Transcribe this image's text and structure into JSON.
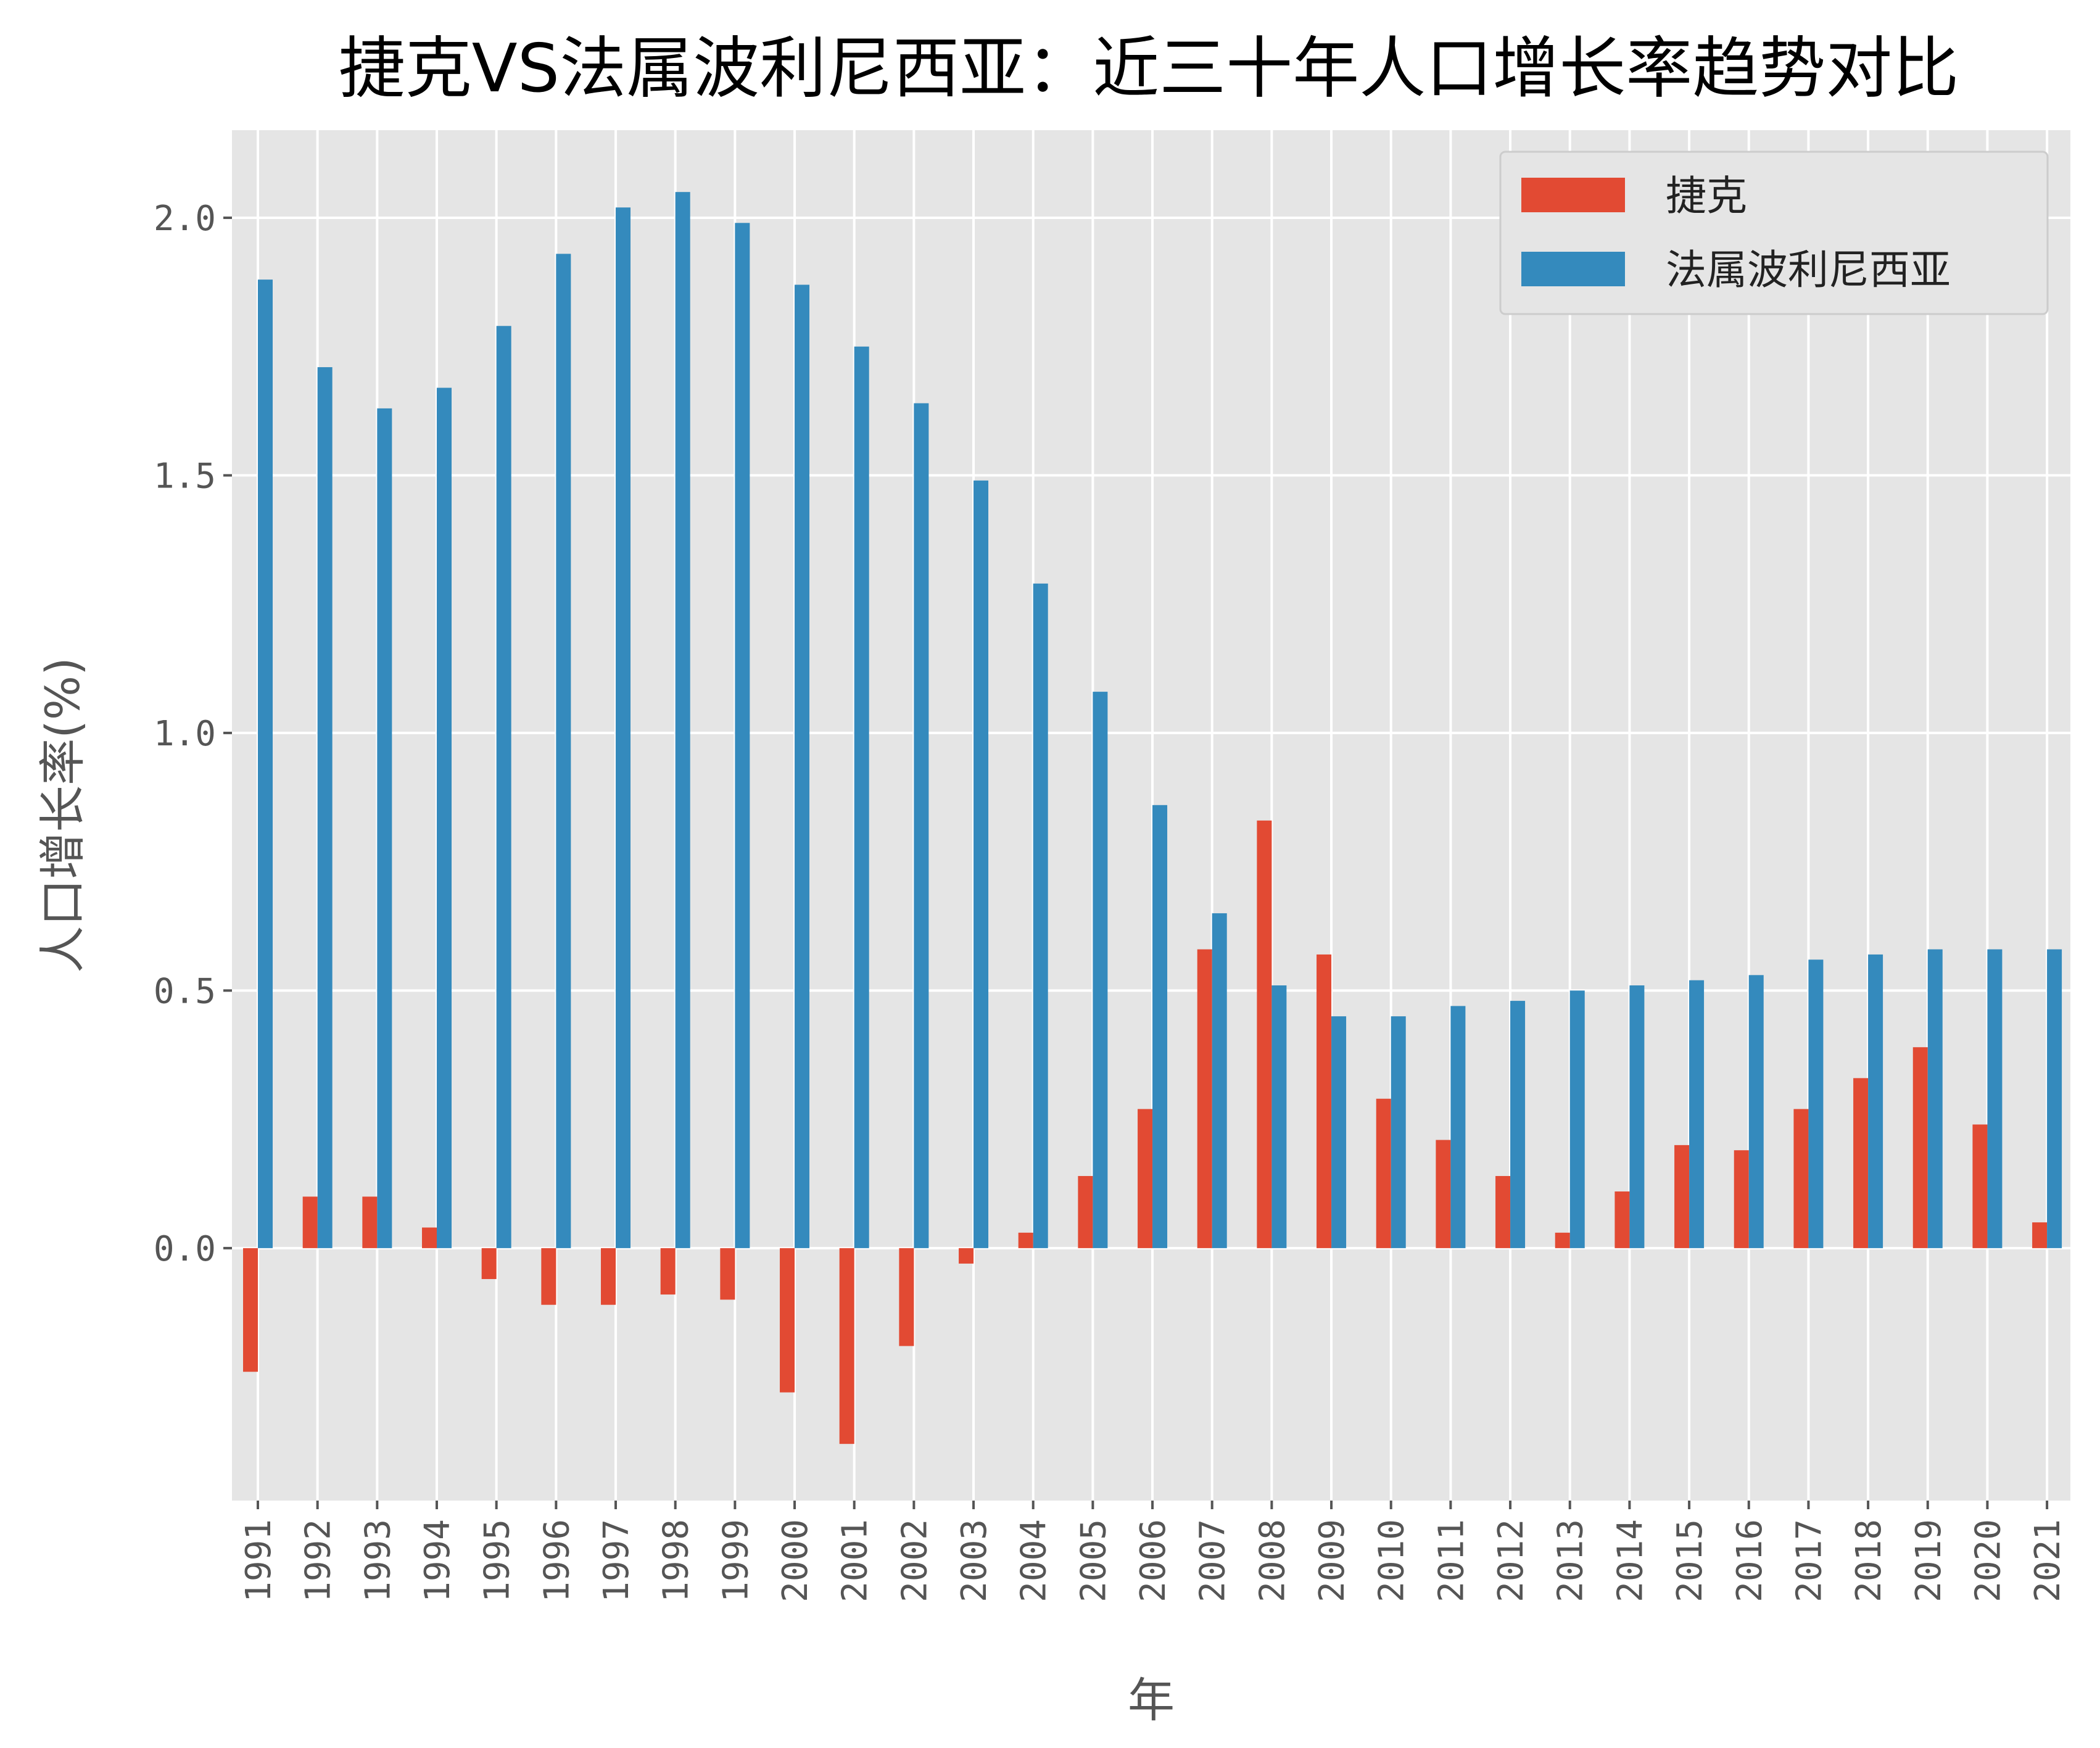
{
  "chart_data": {
    "type": "bar",
    "title": "捷克VS法属波利尼西亚：近三十年人口增长率趋势对比",
    "xlabel": "年",
    "ylabel": "人口增长率(%)",
    "categories": [
      "1991",
      "1992",
      "1993",
      "1994",
      "1995",
      "1996",
      "1997",
      "1998",
      "1999",
      "2000",
      "2001",
      "2002",
      "2003",
      "2004",
      "2005",
      "2006",
      "2007",
      "2008",
      "2009",
      "2010",
      "2011",
      "2012",
      "2013",
      "2014",
      "2015",
      "2016",
      "2017",
      "2018",
      "2019",
      "2020",
      "2021"
    ],
    "series": [
      {
        "name": "捷克",
        "color": "#E24A33",
        "values": [
          -0.24,
          0.1,
          0.1,
          0.04,
          -0.06,
          -0.11,
          -0.11,
          -0.09,
          -0.1,
          -0.28,
          -0.38,
          -0.19,
          -0.03,
          0.03,
          0.14,
          0.27,
          0.58,
          0.83,
          0.57,
          0.29,
          0.21,
          0.14,
          0.03,
          0.11,
          0.2,
          0.19,
          0.27,
          0.33,
          0.39,
          0.24,
          0.05
        ]
      },
      {
        "name": "法属波利尼西亚",
        "color": "#348ABD",
        "values": [
          1.88,
          1.71,
          1.63,
          1.67,
          1.79,
          1.93,
          2.02,
          2.05,
          1.99,
          1.87,
          1.75,
          1.64,
          1.49,
          1.29,
          1.08,
          0.86,
          0.65,
          0.51,
          0.45,
          0.45,
          0.47,
          0.48,
          0.5,
          0.51,
          0.52,
          0.53,
          0.56,
          0.57,
          0.58,
          0.58,
          0.58
        ]
      }
    ],
    "ylim": [
      -0.49,
      2.17
    ],
    "yticks": [
      0.0,
      0.5,
      1.0,
      1.5,
      2.0
    ],
    "ytick_labels": [
      "0.0",
      "0.5",
      "1.0",
      "1.5",
      "2.0"
    ],
    "grid": true,
    "legend_position": "top-right",
    "background_color": "#E5E5E5",
    "grid_color": "#FFFFFF"
  }
}
